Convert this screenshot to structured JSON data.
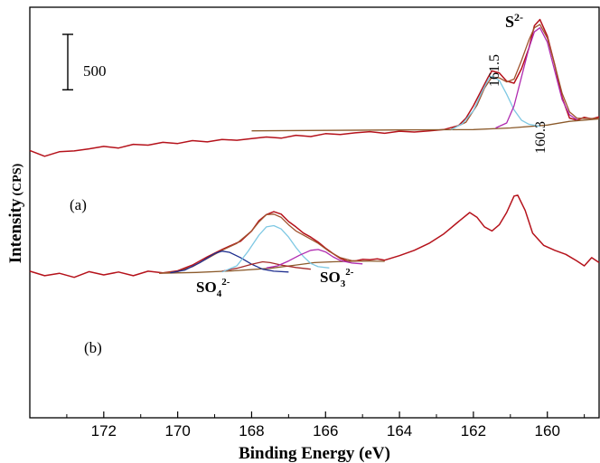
{
  "chart_data": {
    "type": "line",
    "xlabel": "Binding Energy (eV)",
    "ylabel_main": "Intensity",
    "ylabel_unit": "(CPS)",
    "xlim": [
      174,
      158.6
    ],
    "x_reversed": true,
    "ylim": [
      0,
      1000
    ],
    "xticks": [
      172,
      170,
      168,
      166,
      164,
      162,
      160
    ],
    "scale_bar": {
      "label": "500",
      "value": 500
    },
    "panel_labels": [
      "(a)",
      "(b)"
    ],
    "annotations": {
      "a_sulfide": {
        "text": "S",
        "sup": "2-"
      },
      "a_peak1": "161.5",
      "a_peak2": "160.3",
      "b_sulfate": {
        "text": "SO",
        "sub": "4",
        "sup": "2-"
      },
      "b_sulfite": {
        "text": "SO",
        "sub": "3",
        "sup": "2-"
      }
    },
    "colors": {
      "raw": "#b5121b",
      "envelope": "#a0522d",
      "background": "#8b5a2b",
      "sulfide_161": "#7ec8e3",
      "sulfide_160": "#b02bb0",
      "sulfate": "#1f2f8f",
      "sulfite": "#b02bb0",
      "mid_b": "#a52a2a",
      "main_b": "#7ec8e3"
    },
    "series": [
      {
        "panel": "a",
        "role": "raw",
        "points": [
          [
            174,
            651
          ],
          [
            173.6,
            637
          ],
          [
            173.2,
            648
          ],
          [
            172.8,
            650
          ],
          [
            172.4,
            655
          ],
          [
            172,
            661
          ],
          [
            171.6,
            657
          ],
          [
            171.2,
            666
          ],
          [
            170.8,
            664
          ],
          [
            170.4,
            671
          ],
          [
            170,
            668
          ],
          [
            169.6,
            675
          ],
          [
            169.2,
            672
          ],
          [
            168.8,
            678
          ],
          [
            168.4,
            676
          ],
          [
            168,
            680
          ],
          [
            167.6,
            684
          ],
          [
            167.2,
            681
          ],
          [
            166.8,
            688
          ],
          [
            166.4,
            685
          ],
          [
            166,
            692
          ],
          [
            165.6,
            690
          ],
          [
            165.2,
            694
          ],
          [
            164.8,
            697
          ],
          [
            164.4,
            693
          ],
          [
            164,
            698
          ],
          [
            163.6,
            696
          ],
          [
            163.2,
            699
          ],
          [
            162.8,
            702
          ],
          [
            162.4,
            712
          ],
          [
            162.2,
            730
          ],
          [
            162,
            760
          ],
          [
            161.8,
            795
          ],
          [
            161.6,
            830
          ],
          [
            161.5,
            845
          ],
          [
            161.3,
            840
          ],
          [
            161.1,
            820
          ],
          [
            160.9,
            815
          ],
          [
            160.7,
            850
          ],
          [
            160.5,
            900
          ],
          [
            160.35,
            955
          ],
          [
            160.2,
            970
          ],
          [
            160,
            930
          ],
          [
            159.8,
            860
          ],
          [
            159.6,
            780
          ],
          [
            159.4,
            730
          ],
          [
            159.2,
            725
          ],
          [
            159,
            732
          ],
          [
            158.8,
            728
          ],
          [
            158.6,
            733
          ]
        ]
      },
      {
        "panel": "a",
        "role": "background",
        "points": [
          [
            168,
            699
          ],
          [
            166,
            700
          ],
          [
            164,
            701
          ],
          [
            162,
            702
          ],
          [
            161,
            706
          ],
          [
            160,
            713
          ],
          [
            159.4,
            722
          ],
          [
            158.6,
            728
          ]
        ]
      },
      {
        "panel": "a",
        "role": "envelope",
        "points": [
          [
            162.6,
            703
          ],
          [
            162.2,
            720
          ],
          [
            161.9,
            762
          ],
          [
            161.7,
            803
          ],
          [
            161.5,
            830
          ],
          [
            161.3,
            828
          ],
          [
            161.1,
            818
          ],
          [
            160.9,
            825
          ],
          [
            160.7,
            870
          ],
          [
            160.5,
            920
          ],
          [
            160.35,
            950
          ],
          [
            160.2,
            958
          ],
          [
            160,
            925
          ],
          [
            159.8,
            860
          ],
          [
            159.6,
            790
          ],
          [
            159.4,
            745
          ],
          [
            159.2,
            730
          ],
          [
            159,
            729
          ],
          [
            158.6,
            729
          ]
        ]
      },
      {
        "panel": "a",
        "role": "sulfide_161",
        "points": [
          [
            162.6,
            702
          ],
          [
            162.3,
            716
          ],
          [
            162,
            748
          ],
          [
            161.8,
            788
          ],
          [
            161.6,
            824
          ],
          [
            161.5,
            832
          ],
          [
            161.3,
            822
          ],
          [
            161.1,
            788
          ],
          [
            160.9,
            750
          ],
          [
            160.7,
            725
          ],
          [
            160.5,
            715
          ],
          [
            160.2,
            710
          ]
        ]
      },
      {
        "panel": "a",
        "role": "sulfide_160",
        "points": [
          [
            161.4,
            706
          ],
          [
            161.1,
            718
          ],
          [
            160.9,
            760
          ],
          [
            160.7,
            830
          ],
          [
            160.5,
            900
          ],
          [
            160.35,
            940
          ],
          [
            160.2,
            950
          ],
          [
            160,
            915
          ],
          [
            159.8,
            845
          ],
          [
            159.6,
            775
          ],
          [
            159.4,
            738
          ],
          [
            159.2,
            726
          ]
        ]
      },
      {
        "panel": "b",
        "role": "raw",
        "points": [
          [
            174,
            357
          ],
          [
            173.6,
            346
          ],
          [
            173.2,
            352
          ],
          [
            172.8,
            342
          ],
          [
            172.4,
            356
          ],
          [
            172,
            348
          ],
          [
            171.6,
            355
          ],
          [
            171.2,
            346
          ],
          [
            170.8,
            357
          ],
          [
            170.4,
            353
          ],
          [
            170,
            358
          ],
          [
            169.6,
            372
          ],
          [
            169.2,
            392
          ],
          [
            168.8,
            410
          ],
          [
            168.6,
            418
          ],
          [
            168.3,
            430
          ],
          [
            168,
            455
          ],
          [
            167.8,
            480
          ],
          [
            167.6,
            495
          ],
          [
            167.4,
            502
          ],
          [
            167.2,
            496
          ],
          [
            167,
            478
          ],
          [
            166.8,
            465
          ],
          [
            166.6,
            450
          ],
          [
            166.4,
            440
          ],
          [
            166.2,
            428
          ],
          [
            166,
            413
          ],
          [
            165.8,
            400
          ],
          [
            165.6,
            388
          ],
          [
            165.4,
            381
          ],
          [
            165.2,
            382
          ],
          [
            165,
            386
          ],
          [
            164.8,
            385
          ],
          [
            164.6,
            387
          ],
          [
            164.4,
            384
          ],
          [
            164,
            395
          ],
          [
            163.6,
            408
          ],
          [
            163.2,
            425
          ],
          [
            162.8,
            448
          ],
          [
            162.4,
            478
          ],
          [
            162.1,
            500
          ],
          [
            161.9,
            488
          ],
          [
            161.7,
            465
          ],
          [
            161.5,
            455
          ],
          [
            161.3,
            470
          ],
          [
            161.1,
            500
          ],
          [
            160.9,
            540
          ],
          [
            160.8,
            542
          ],
          [
            160.6,
            505
          ],
          [
            160.4,
            450
          ],
          [
            160.1,
            420
          ],
          [
            159.8,
            408
          ],
          [
            159.5,
            398
          ],
          [
            159.2,
            382
          ],
          [
            159,
            370
          ],
          [
            158.8,
            390
          ],
          [
            158.6,
            378
          ]
        ]
      },
      {
        "panel": "b",
        "role": "background",
        "points": [
          [
            170.5,
            352
          ],
          [
            169.5,
            354
          ],
          [
            168.5,
            358
          ],
          [
            167.5,
            364
          ],
          [
            166.8,
            372
          ],
          [
            166.3,
            378
          ],
          [
            165.8,
            380
          ],
          [
            165,
            382
          ],
          [
            164.4,
            381
          ]
        ]
      },
      {
        "panel": "b",
        "role": "envelope",
        "points": [
          [
            170.5,
            352
          ],
          [
            170,
            356
          ],
          [
            169.6,
            368
          ],
          [
            169.2,
            388
          ],
          [
            168.8,
            408
          ],
          [
            168.4,
            425
          ],
          [
            168,
            455
          ],
          [
            167.8,
            477
          ],
          [
            167.6,
            495
          ],
          [
            167.4,
            496
          ],
          [
            167.2,
            488
          ],
          [
            167,
            470
          ],
          [
            166.8,
            455
          ],
          [
            166.5,
            440
          ],
          [
            166.2,
            425
          ],
          [
            165.9,
            405
          ],
          [
            165.6,
            390
          ],
          [
            165.3,
            383
          ],
          [
            165,
            382
          ]
        ]
      },
      {
        "panel": "b",
        "role": "sulfate",
        "points": [
          [
            170.2,
            353
          ],
          [
            169.8,
            360
          ],
          [
            169.4,
            378
          ],
          [
            169,
            400
          ],
          [
            168.8,
            406
          ],
          [
            168.6,
            403
          ],
          [
            168.3,
            390
          ],
          [
            168,
            374
          ],
          [
            167.7,
            362
          ],
          [
            167.4,
            357
          ],
          [
            167,
            355
          ]
        ]
      },
      {
        "panel": "b",
        "role": "mid_b",
        "points": [
          [
            168.8,
            357
          ],
          [
            168.4,
            364
          ],
          [
            168,
            374
          ],
          [
            167.7,
            380
          ],
          [
            167.5,
            378
          ],
          [
            167.2,
            372
          ],
          [
            166.8,
            366
          ],
          [
            166.4,
            362
          ]
        ]
      },
      {
        "panel": "b",
        "role": "main_b",
        "points": [
          [
            168.8,
            355
          ],
          [
            168.4,
            370
          ],
          [
            168.1,
            405
          ],
          [
            167.8,
            445
          ],
          [
            167.6,
            465
          ],
          [
            167.4,
            468
          ],
          [
            167.2,
            460
          ],
          [
            167,
            440
          ],
          [
            166.8,
            415
          ],
          [
            166.6,
            393
          ],
          [
            166.4,
            376
          ],
          [
            166.2,
            368
          ],
          [
            165.9,
            365
          ]
        ]
      },
      {
        "panel": "b",
        "role": "sulfite",
        "points": [
          [
            167.6,
            365
          ],
          [
            167.3,
            370
          ],
          [
            167,
            382
          ],
          [
            166.7,
            396
          ],
          [
            166.4,
            408
          ],
          [
            166.2,
            410
          ],
          [
            166,
            404
          ],
          [
            165.8,
            392
          ],
          [
            165.6,
            383
          ],
          [
            165.3,
            377
          ],
          [
            165,
            375
          ]
        ]
      }
    ]
  }
}
